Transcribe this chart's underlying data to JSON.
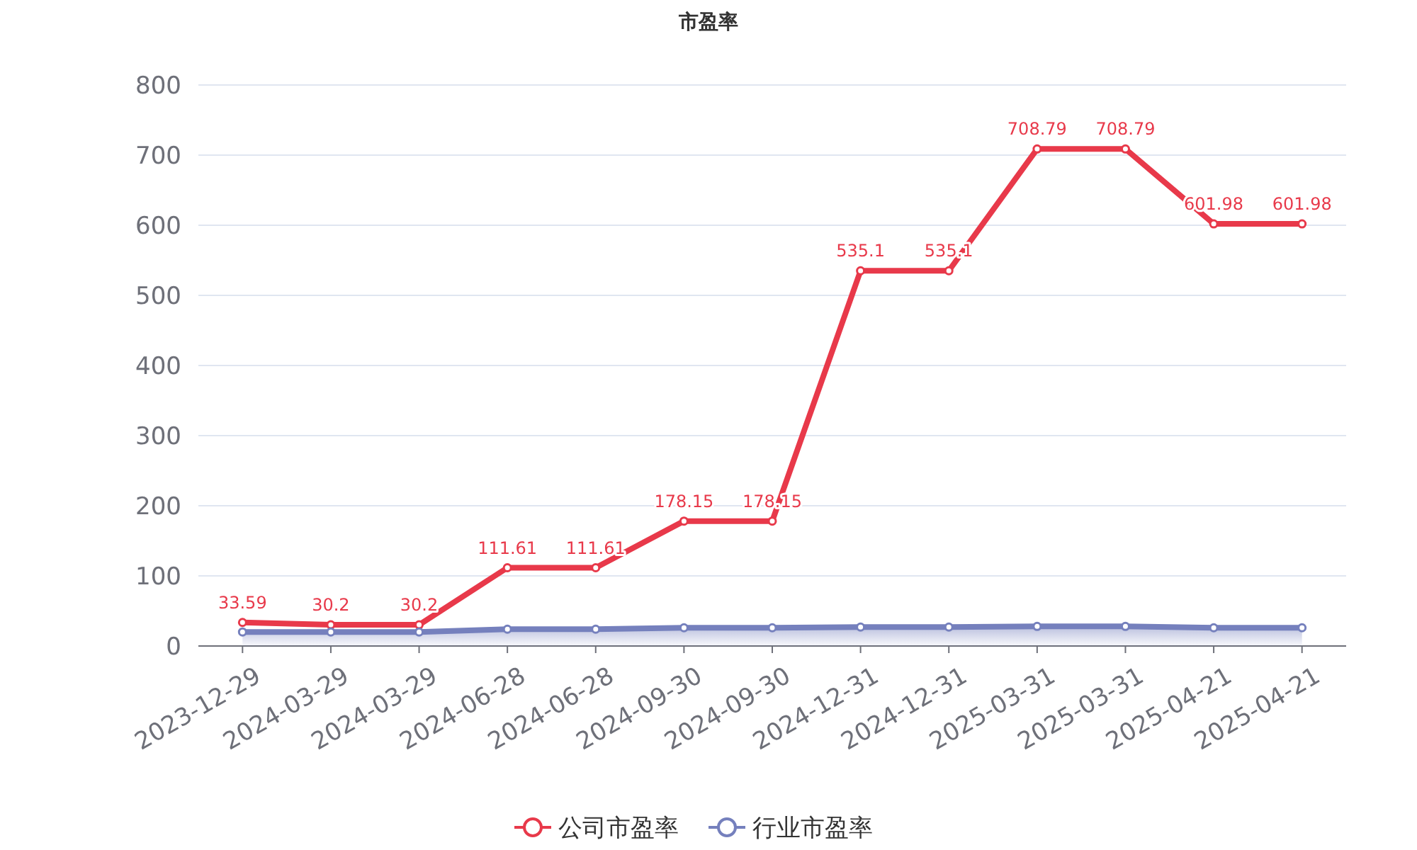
{
  "chart_data": {
    "type": "line",
    "title": "市盈率",
    "categories": [
      "2023-12-29",
      "2024-03-29",
      "2024-03-29",
      "2024-06-28",
      "2024-06-28",
      "2024-09-30",
      "2024-09-30",
      "2024-12-31",
      "2024-12-31",
      "2025-03-31",
      "2025-03-31",
      "2025-04-21",
      "2025-04-21"
    ],
    "series": [
      {
        "name": "公司市盈率",
        "color": "#e8394a",
        "values": [
          33.59,
          30.2,
          30.2,
          111.61,
          111.61,
          178.15,
          178.15,
          535.1,
          535.1,
          708.79,
          708.79,
          601.98,
          601.98
        ],
        "value_labels": [
          "33.59",
          "30.2",
          "30.2",
          "111.61",
          "111.61",
          "178.15",
          "178.15",
          "535.1",
          "535.1",
          "708.79",
          "708.79",
          "601.98",
          "601.98"
        ]
      },
      {
        "name": "行业市盈率",
        "type": "area",
        "color": "#7580bd",
        "values": [
          20,
          20,
          20,
          24,
          24,
          26,
          26,
          27,
          27,
          28,
          28,
          26,
          26
        ]
      }
    ],
    "ylim": [
      0,
      800
    ],
    "yticks": [
      0,
      100,
      200,
      300,
      400,
      500,
      600,
      700,
      800
    ],
    "grid": "y",
    "legend": "bottom",
    "marker": "circle"
  }
}
